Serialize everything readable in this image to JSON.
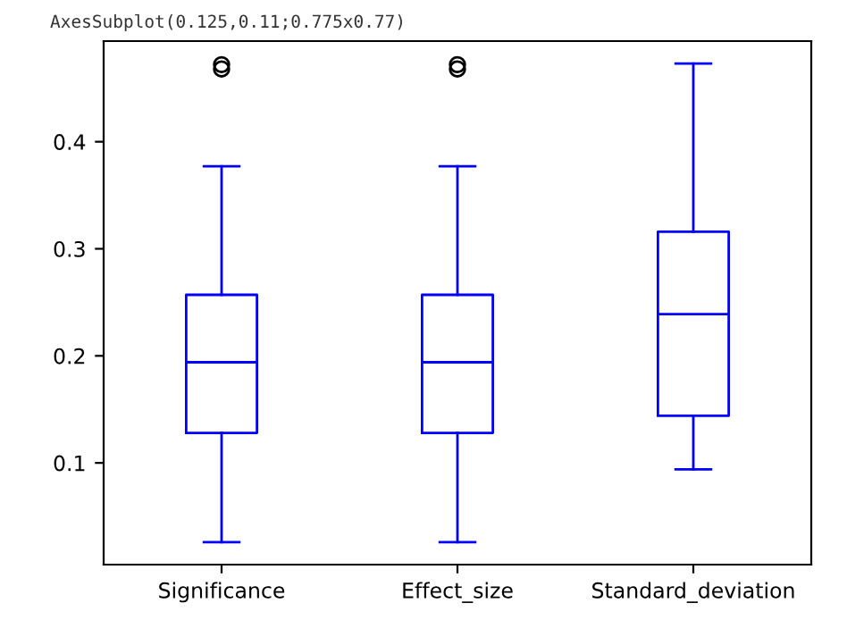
{
  "chart_data": {
    "type": "box",
    "annotations": [
      "AxesSubplot(0.125,0.11;0.775x0.77)"
    ],
    "categories": [
      "Significance",
      "Effect_size",
      "Standard_deviation"
    ],
    "color": "#0000ff",
    "boxes": [
      {
        "low": 0.026,
        "q1": 0.128,
        "median": 0.194,
        "q3": 0.257,
        "high": 0.377,
        "outliers": [
          0.468,
          0.472
        ]
      },
      {
        "low": 0.026,
        "q1": 0.128,
        "median": 0.194,
        "q3": 0.257,
        "high": 0.377,
        "outliers": [
          0.468,
          0.472
        ]
      },
      {
        "low": 0.094,
        "q1": 0.144,
        "median": 0.239,
        "q3": 0.316,
        "high": 0.473
      }
    ],
    "ylim": [
      0.005,
      0.494
    ],
    "yticks": [
      0.1,
      0.2,
      0.3,
      0.4
    ],
    "grid": false
  }
}
